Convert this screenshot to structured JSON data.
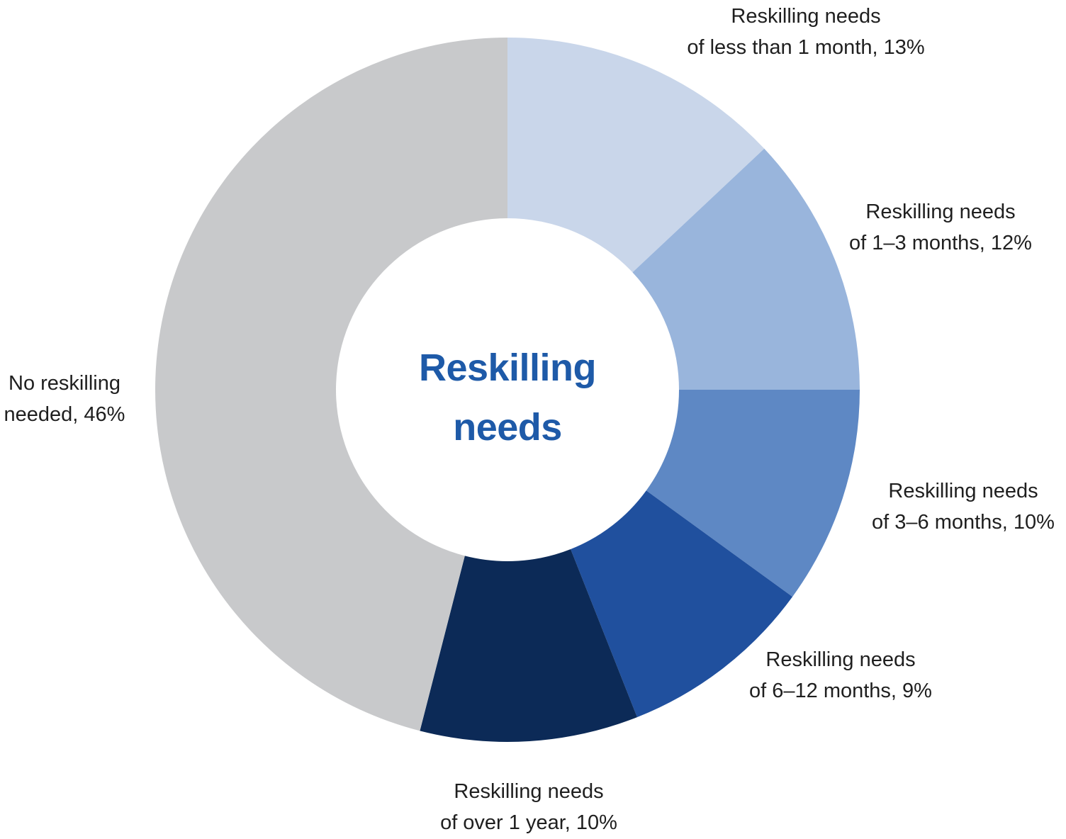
{
  "chart_data": {
    "type": "pie",
    "subtype": "donut",
    "direction": "clockwise",
    "start_angle_deg": 0,
    "background": "#FFFFFF",
    "label_color": "#1F1F1F",
    "center_title_lines": [
      "Reskilling",
      "needs"
    ],
    "center_title_color": "#1E5AA8",
    "segments": [
      {
        "name": "Reskilling needs of less than 1 month",
        "value": 13,
        "color": "#C9D6EA",
        "label_line1": "Reskilling needs",
        "label_line2": "of less than 1 month, 13%"
      },
      {
        "name": "Reskilling needs of 1–3 months",
        "value": 12,
        "color": "#99B5DC",
        "label_line1": "Reskilling needs",
        "label_line2": "of 1–3 months, 12%"
      },
      {
        "name": "Reskilling needs of 3–6 months",
        "value": 10,
        "color": "#5E88C4",
        "label_line1": "Reskilling needs",
        "label_line2": "of 3–6 months, 10%"
      },
      {
        "name": "Reskilling needs of 6–12 months",
        "value": 9,
        "color": "#20509E",
        "label_line1": "Reskilling needs",
        "label_line2": "of 6–12 months, 9%"
      },
      {
        "name": "Reskilling needs of over 1 year",
        "value": 10,
        "color": "#0C2A57",
        "label_line1": "Reskilling needs",
        "label_line2": "of over 1 year, 10%"
      },
      {
        "name": "No reskilling needed",
        "value": 46,
        "color": "#C8C9CB",
        "label_line1": "No reskilling",
        "label_line2": "needed, 46%"
      }
    ]
  }
}
